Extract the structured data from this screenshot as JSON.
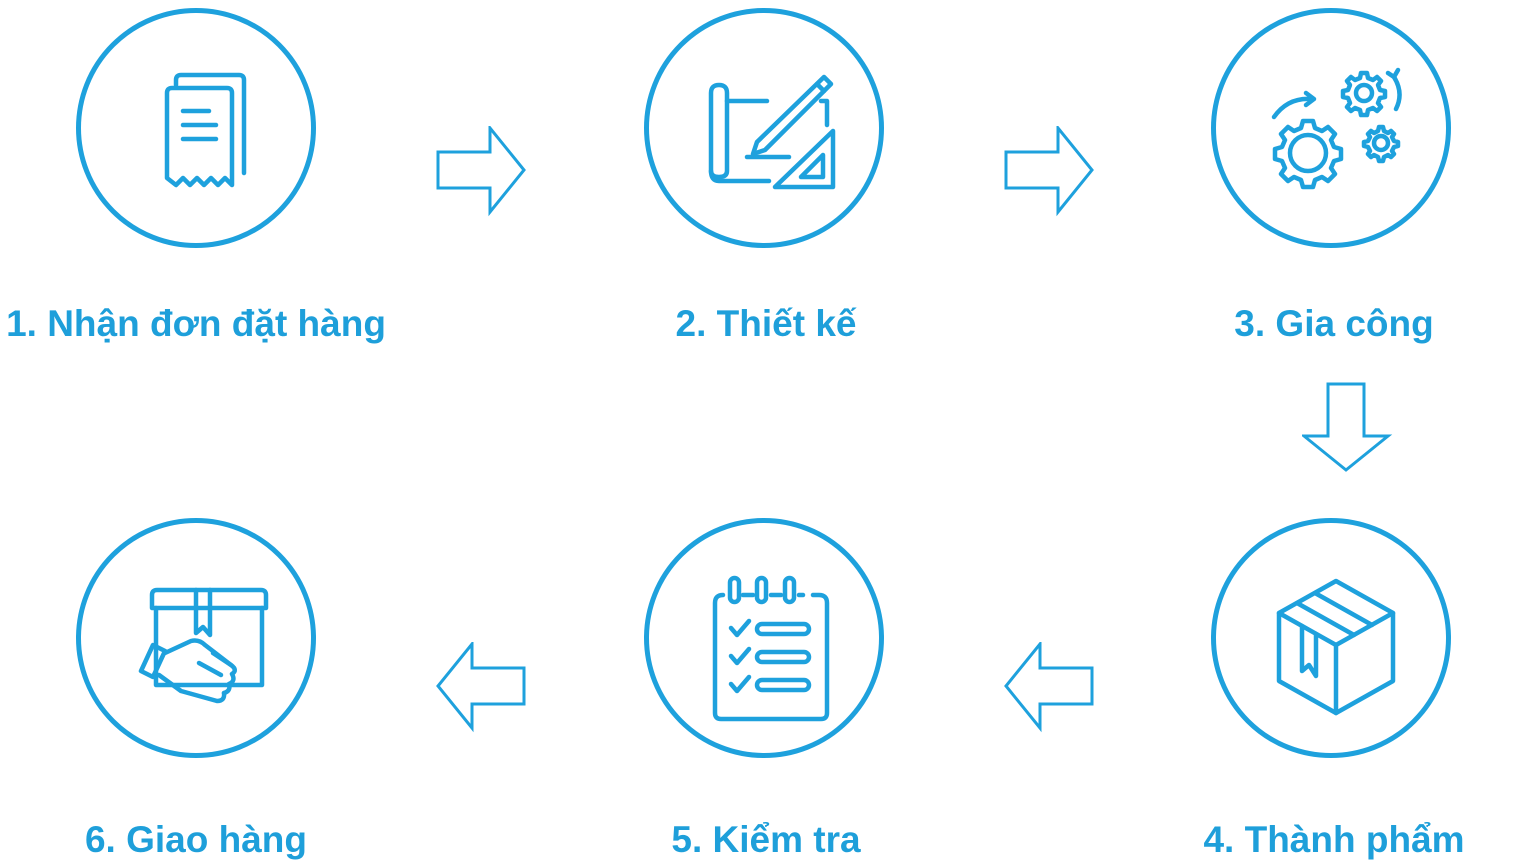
{
  "steps": [
    {
      "label": "1. Nhận đơn đặt hàng",
      "icon": "receipt-icon"
    },
    {
      "label": "2. Thiết kế",
      "icon": "blueprint-pencil-icon"
    },
    {
      "label": "3. Gia công",
      "icon": "gears-icon"
    },
    {
      "label": "4. Thành phẩm",
      "icon": "box-icon"
    },
    {
      "label": "5. Kiểm tra",
      "icon": "checklist-icon"
    },
    {
      "label": "6. Giao hàng",
      "icon": "delivery-hand-icon"
    }
  ],
  "colors": {
    "accent": "#1ea1dd",
    "text": "#1e9fda",
    "background": "#ffffff"
  }
}
